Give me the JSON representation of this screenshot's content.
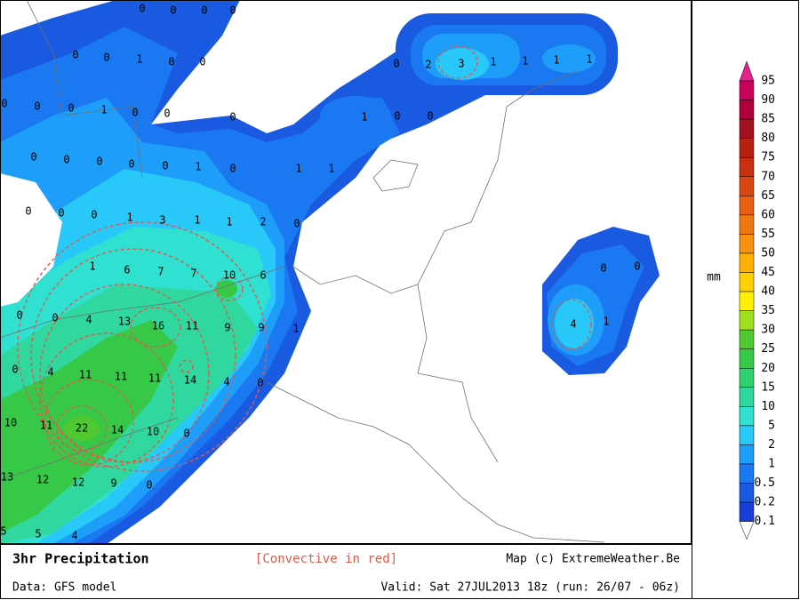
{
  "map": {
    "labels": [
      "0",
      "0",
      "0",
      "0",
      "0",
      "0",
      "1",
      "0",
      "0",
      "0",
      "0",
      "0",
      "1",
      "0",
      "0",
      "0",
      "0",
      "0",
      "0",
      "0",
      "0",
      "1",
      "0",
      "1",
      "1",
      "0",
      "0",
      "0",
      "1",
      "3",
      "1",
      "1",
      "2",
      "0",
      "1",
      "6",
      "7",
      "7",
      "10",
      "6",
      "0",
      "0",
      "4",
      "13",
      "16",
      "11",
      "9",
      "9",
      "1",
      "0",
      "4",
      "11",
      "11",
      "11",
      "14",
      "4",
      "0",
      "10",
      "11",
      "22",
      "14",
      "10",
      "0",
      "13",
      "12",
      "12",
      "9",
      "0",
      "5",
      "5",
      "4",
      "0",
      "2",
      "3",
      "1",
      "1",
      "1",
      "1",
      "1",
      "0",
      "0",
      "0",
      "0",
      "4",
      "1"
    ]
  },
  "legend": {
    "unit": "mm",
    "levels": [
      {
        "label": "95",
        "color": "#e8208c"
      },
      {
        "label": "90",
        "color": "#c8005a"
      },
      {
        "label": "85",
        "color": "#b0003c"
      },
      {
        "label": "80",
        "color": "#a01020"
      },
      {
        "label": "75",
        "color": "#b82010"
      },
      {
        "label": "70",
        "color": "#c83010"
      },
      {
        "label": "65",
        "color": "#d84810"
      },
      {
        "label": "60",
        "color": "#e86010"
      },
      {
        "label": "55",
        "color": "#f07810"
      },
      {
        "label": "50",
        "color": "#f89010"
      },
      {
        "label": "45",
        "color": "#ffb000"
      },
      {
        "label": "40",
        "color": "#ffd000"
      },
      {
        "label": "35",
        "color": "#fff000"
      },
      {
        "label": "30",
        "color": "#a0e020"
      },
      {
        "label": "25",
        "color": "#50c830"
      },
      {
        "label": "20",
        "color": "#38c848"
      },
      {
        "label": "15",
        "color": "#30d070"
      },
      {
        "label": "10",
        "color": "#30d8a0"
      },
      {
        "label": "5",
        "color": "#30e0d0"
      },
      {
        "label": "2",
        "color": "#28c8f8"
      },
      {
        "label": "1",
        "color": "#1e9ef8"
      },
      {
        "label": "0.5",
        "color": "#1a78f0"
      },
      {
        "label": "0.2",
        "color": "#1a5ae0"
      },
      {
        "label": "0.1",
        "color": "#1840d8"
      }
    ]
  },
  "footer": {
    "title": "3hr Precipitation",
    "convective": "[Convective in red]",
    "credit": "Map (c) ExtremeWeather.Be",
    "data": "Data: GFS model",
    "valid": "Valid: Sat 27JUL2013 18z (run: 26/07 - 06z)"
  }
}
